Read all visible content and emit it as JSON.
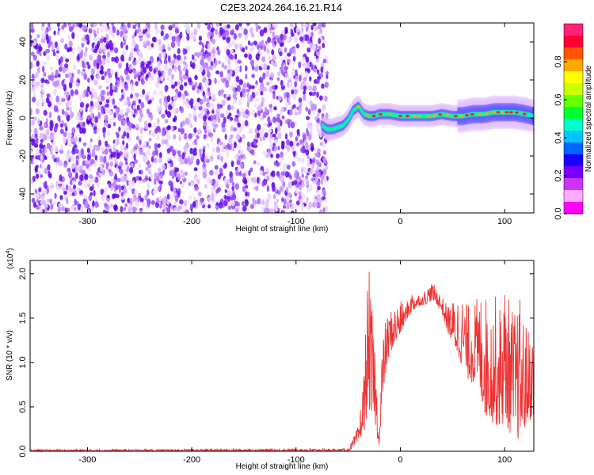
{
  "title": "C2E3.2024.264.16.21.R14",
  "chart_data": [
    {
      "type": "heatmap",
      "xlabel": "Height of straight line (km)",
      "ylabel": "Frequency (Hz)",
      "xlim": [
        -355,
        128
      ],
      "ylim": [
        -50,
        50
      ],
      "x_ticks": [
        "-300",
        "-200",
        "-100",
        "0",
        "100"
      ],
      "x_tick_values": [
        -300,
        -200,
        -100,
        0,
        100
      ],
      "y_ticks": [
        "-40",
        "-20",
        "0",
        "20",
        "40"
      ],
      "y_tick_values": [
        -40,
        -20,
        0,
        20,
        40
      ],
      "noise_region_x": [
        -355,
        -70
      ],
      "signal_track": {
        "x": [
          -75,
          -70,
          -65,
          -60,
          -55,
          -50,
          -45,
          -40,
          -35,
          -30,
          -25,
          -20,
          -10,
          0,
          10,
          20,
          30,
          40,
          50,
          60,
          70,
          80,
          90,
          100,
          110,
          120,
          128
        ],
        "y": [
          -4,
          -6,
          -6,
          -5,
          -4,
          -1,
          4,
          6,
          2,
          1,
          1,
          2,
          2,
          1,
          1,
          1,
          1,
          2,
          1,
          1,
          2,
          2,
          3,
          3,
          3,
          2,
          1
        ]
      },
      "colorbar": {
        "label": "Normalized spectral amplitude",
        "range": [
          0,
          1
        ],
        "ticks": [
          "0.0",
          "0.2",
          "0.4",
          "0.6",
          "0.8"
        ],
        "tick_values": [
          0.0,
          0.2,
          0.4,
          0.6,
          0.8
        ],
        "colors": [
          "#ff00ff",
          "#ffaaff",
          "#cc33ff",
          "#7700ff",
          "#1a00ff",
          "#0066ff",
          "#00c8ff",
          "#00ffcc",
          "#00ff33",
          "#66ff00",
          "#ccff00",
          "#ffff00",
          "#ffaa00",
          "#ff5500",
          "#ff0033",
          "#ff2277"
        ]
      }
    },
    {
      "type": "line",
      "xlabel": "Height of straight line (km)",
      "ylabel": "SNR (10 * v/v)",
      "exponent": "(x10",
      "exponent_power": "4",
      "exponent_close": ")",
      "xlim": [
        -355,
        128
      ],
      "ylim": [
        0,
        2.15
      ],
      "x_ticks": [
        "-300",
        "-200",
        "-100",
        "0",
        "100"
      ],
      "x_tick_values": [
        -300,
        -200,
        -100,
        0,
        100
      ],
      "y_ticks": [
        "0.0",
        "0.5",
        "1.0",
        "1.5",
        "2.0"
      ],
      "y_tick_values": [
        0.0,
        0.5,
        1.0,
        1.5,
        2.0
      ],
      "series": [
        {
          "color": "#ee3333",
          "envelope": {
            "x": [
              -355,
              -50,
              -45,
              -40,
              -35,
              -32,
              -30,
              -28,
              -25,
              -22,
              -20,
              -18,
              -15,
              -10,
              -5,
              0,
              5,
              10,
              15,
              20,
              25,
              30,
              35,
              40,
              45,
              50,
              55,
              60,
              65,
              70,
              75,
              80,
              85,
              90,
              95,
              100,
              105,
              110,
              115,
              120,
              128
            ],
            "low": [
              0.0,
              0.0,
              0.03,
              0.1,
              0.2,
              0.4,
              0.5,
              0.3,
              0.35,
              0.15,
              0.05,
              0.4,
              0.8,
              1.1,
              1.2,
              1.3,
              1.45,
              1.55,
              1.6,
              1.65,
              1.65,
              1.7,
              1.65,
              1.55,
              1.35,
              1.2,
              1.05,
              0.95,
              0.8,
              0.75,
              0.7,
              0.4,
              0.35,
              0.3,
              0.25,
              0.3,
              0.2,
              0.15,
              0.1,
              0.25,
              0.4
            ],
            "high": [
              0.02,
              0.03,
              0.15,
              0.3,
              0.9,
              1.8,
              2.05,
              1.7,
              1.4,
              0.6,
              0.2,
              1.1,
              1.45,
              1.6,
              1.65,
              1.7,
              1.65,
              1.8,
              1.8,
              1.75,
              1.85,
              1.9,
              1.85,
              1.75,
              1.65,
              1.7,
              1.8,
              1.75,
              1.65,
              1.7,
              1.75,
              1.9,
              1.6,
              1.8,
              1.65,
              1.95,
              1.7,
              1.6,
              1.75,
              1.45,
              1.35
            ]
          }
        }
      ]
    }
  ]
}
